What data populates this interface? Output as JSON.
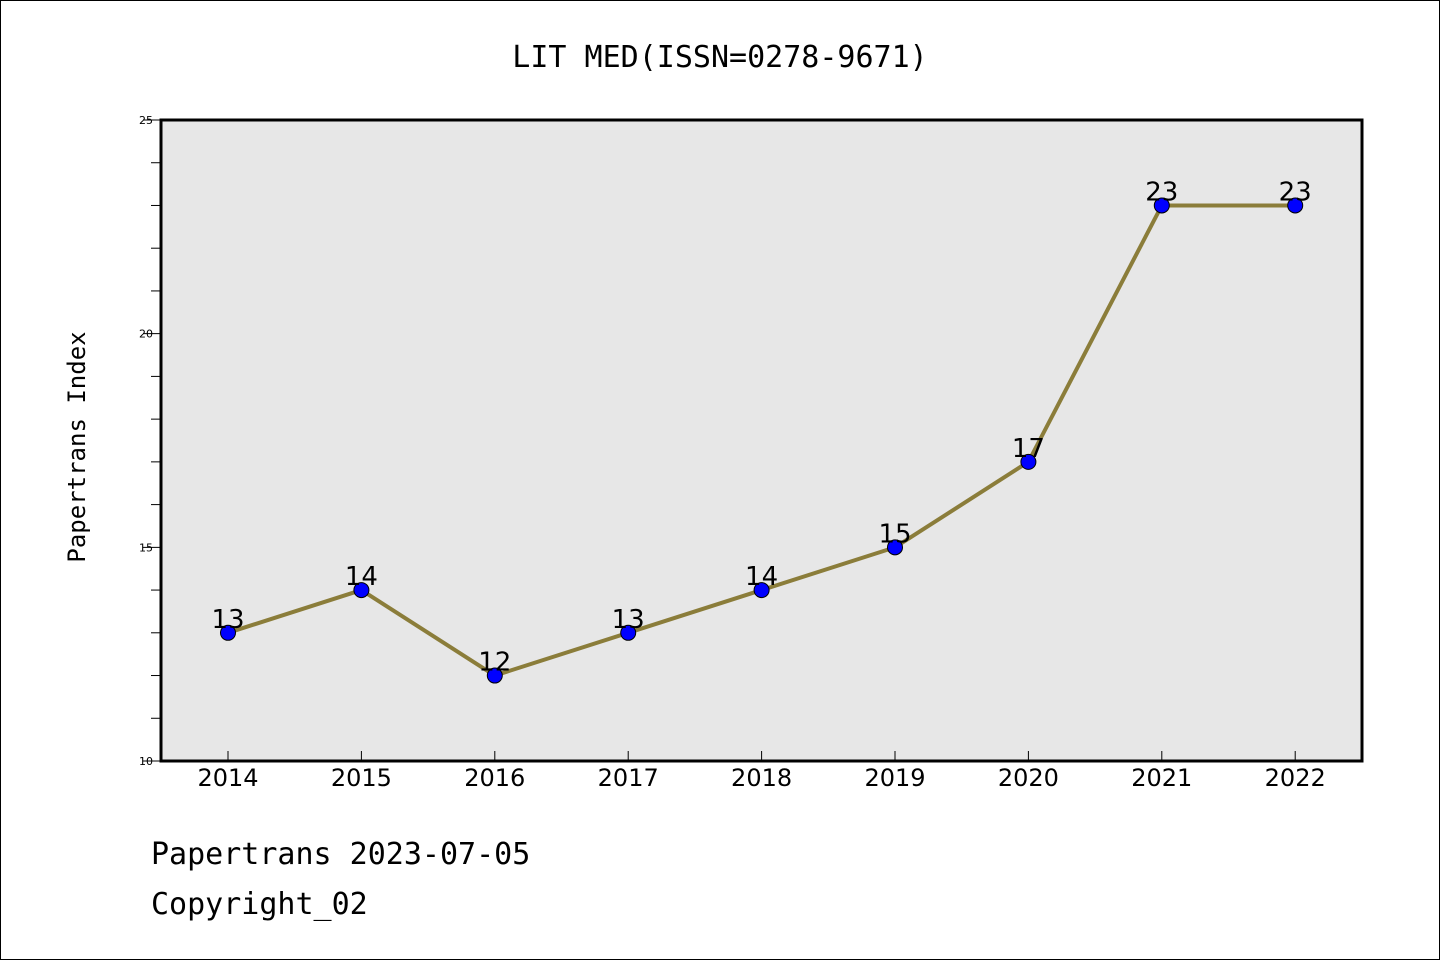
{
  "footer": {
    "line1": "Papertrans 2023-07-05",
    "line2": "Copyright_02"
  },
  "chart_data": {
    "type": "line",
    "title": "LIT MED(ISSN=0278-9671)",
    "ylabel": "Papertrans Index",
    "xlabel": "",
    "x": [
      "2014",
      "2015",
      "2016",
      "2017",
      "2018",
      "2019",
      "2020",
      "2021",
      "2022"
    ],
    "series": [
      {
        "values": [
          13,
          14,
          12,
          13,
          14,
          15,
          17,
          23,
          23
        ],
        "line_color": "#8B7D3A",
        "marker_color": "#0000FF"
      }
    ],
    "ylim": [
      10,
      25
    ],
    "yticks": [
      10,
      15,
      20,
      25
    ],
    "plot_background": "#E7E7E7",
    "grid": false,
    "data_labels": true
  }
}
